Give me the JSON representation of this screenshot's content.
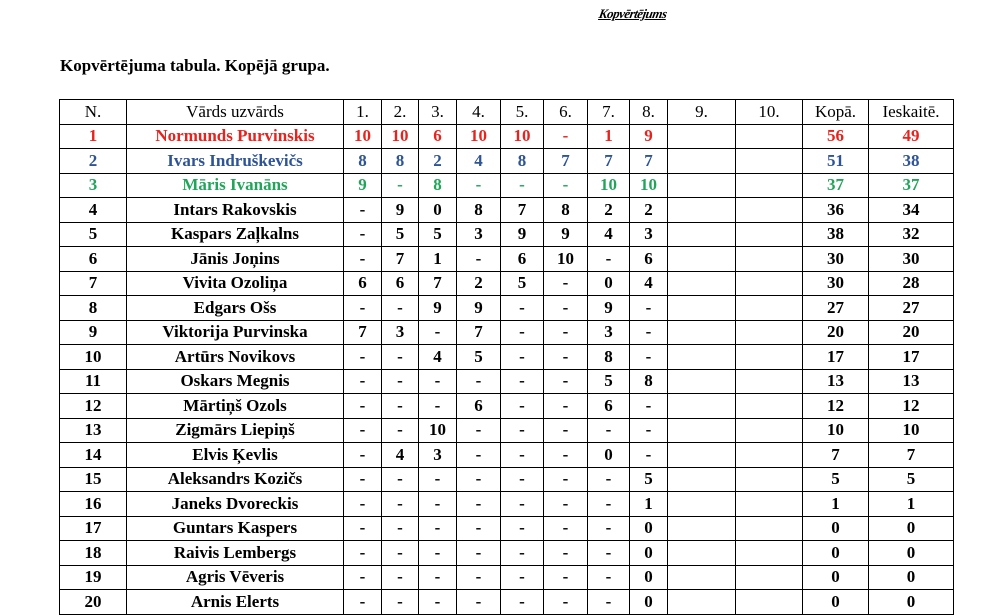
{
  "header": "Kopvērtējums",
  "title": "Kopvērtējuma tabula. Kopējā grupa.",
  "columns": [
    "N.",
    "Vārds uzvārds",
    "1.",
    "2.",
    "3.",
    "4.",
    "5.",
    "6.",
    "7.",
    "8.",
    "9.",
    "10.",
    "Kopā.",
    "Ieskaitē."
  ],
  "colors": {
    "first": "#e8221c",
    "second": "#2f5496",
    "third": "#22a55b"
  },
  "rows": [
    [
      "1",
      "Normunds Purvinskis",
      "10",
      "10",
      "6",
      "10",
      "10",
      "-",
      "1",
      "9",
      "",
      "",
      "56",
      "49"
    ],
    [
      "2",
      "Ivars Indruškevičs",
      "8",
      "8",
      "2",
      "4",
      "8",
      "7",
      "7",
      "7",
      "",
      "",
      "51",
      "38"
    ],
    [
      "3",
      "Māris Ivanāns",
      "9",
      "-",
      "8",
      "-",
      "-",
      "-",
      "10",
      "10",
      "",
      "",
      "37",
      "37"
    ],
    [
      "4",
      "Intars Rakovskis",
      "-",
      "9",
      "0",
      "8",
      "7",
      "8",
      "2",
      "2",
      "",
      "",
      "36",
      "34"
    ],
    [
      "5",
      "Kaspars Zaļkalns",
      "-",
      "5",
      "5",
      "3",
      "9",
      "9",
      "4",
      "3",
      "",
      "",
      "38",
      "32"
    ],
    [
      "6",
      "Jānis Joņins",
      "-",
      "7",
      "1",
      "-",
      "6",
      "10",
      "-",
      "6",
      "",
      "",
      "30",
      "30"
    ],
    [
      "7",
      "Vivita Ozoliņa",
      "6",
      "6",
      "7",
      "2",
      "5",
      "-",
      "0",
      "4",
      "",
      "",
      "30",
      "28"
    ],
    [
      "8",
      "Edgars Ošs",
      "-",
      "-",
      "9",
      "9",
      "-",
      "-",
      "9",
      "-",
      "",
      "",
      "27",
      "27"
    ],
    [
      "9",
      "Viktorija Purvinska",
      "7",
      "3",
      "-",
      "7",
      "-",
      "-",
      "3",
      "-",
      "",
      "",
      "20",
      "20"
    ],
    [
      "10",
      "Artūrs Novikovs",
      "-",
      "-",
      "4",
      "5",
      "-",
      "-",
      "8",
      "-",
      "",
      "",
      "17",
      "17"
    ],
    [
      "11",
      "Oskars Megnis",
      "-",
      "-",
      "-",
      "-",
      "-",
      "-",
      "5",
      "8",
      "",
      "",
      "13",
      "13"
    ],
    [
      "12",
      "Mārtiņš Ozols",
      "-",
      "-",
      "-",
      "6",
      "-",
      "-",
      "6",
      "-",
      "",
      "",
      "12",
      "12"
    ],
    [
      "13",
      "Zigmārs Liepiņš",
      "-",
      "-",
      "10",
      "-",
      "-",
      "-",
      "-",
      "-",
      "",
      "",
      "10",
      "10"
    ],
    [
      "14",
      "Elvis Ķevlis",
      "-",
      "4",
      "3",
      "-",
      "-",
      "-",
      "0",
      "-",
      "",
      "",
      "7",
      "7"
    ],
    [
      "15",
      "Aleksandrs Kozičs",
      "-",
      "-",
      "-",
      "-",
      "-",
      "-",
      "-",
      "5",
      "",
      "",
      "5",
      "5"
    ],
    [
      "16",
      "Janeks Dvoreckis",
      "-",
      "-",
      "-",
      "-",
      "-",
      "-",
      "-",
      "1",
      "",
      "",
      "1",
      "1"
    ],
    [
      "17",
      "Guntars Kaspers",
      "-",
      "-",
      "-",
      "-",
      "-",
      "-",
      "-",
      "0",
      "",
      "",
      "0",
      "0"
    ],
    [
      "18",
      "Raivis Lembergs",
      "-",
      "-",
      "-",
      "-",
      "-",
      "-",
      "-",
      "0",
      "",
      "",
      "0",
      "0"
    ],
    [
      "19",
      "Agris Vēveris",
      "-",
      "-",
      "-",
      "-",
      "-",
      "-",
      "-",
      "0",
      "",
      "",
      "0",
      "0"
    ],
    [
      "20",
      "Arnis Elerts",
      "-",
      "-",
      "-",
      "-",
      "-",
      "-",
      "-",
      "0",
      "",
      "",
      "0",
      "0"
    ]
  ]
}
